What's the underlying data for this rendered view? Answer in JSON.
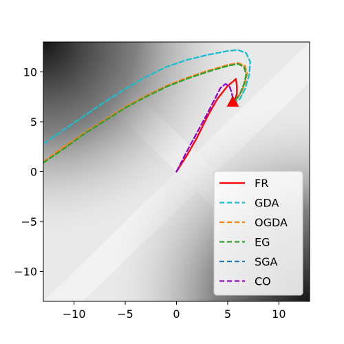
{
  "chart_data": {
    "type": "line",
    "title": "",
    "xlabel": "",
    "ylabel": "",
    "xlim": [
      -13,
      13
    ],
    "ylim": [
      -13,
      13
    ],
    "xticks": [
      -10,
      -5,
      0,
      5,
      10
    ],
    "yticks": [
      -10,
      -5,
      0,
      5,
      10
    ],
    "xtick_labels": [
      "−10",
      "−5",
      "0",
      "5",
      "10"
    ],
    "ytick_labels": [
      "−10",
      "−5",
      "0",
      "5",
      "10"
    ],
    "grid": false,
    "legend_position": "lower-right",
    "background": "grayscale contour field, light along diagonals, dark toward top-left and bottom-right corners",
    "series": [
      {
        "name": "FR",
        "color": "#ff0000",
        "style": "solid",
        "points": [
          [
            0,
            0
          ],
          [
            1,
            1.6
          ],
          [
            2,
            3.4
          ],
          [
            3,
            5.5
          ],
          [
            4,
            7.3
          ],
          [
            5,
            8.6
          ],
          [
            5.6,
            9.1
          ],
          [
            5.8,
            9.3
          ],
          [
            5.9,
            8.6
          ],
          [
            5.9,
            7.8
          ],
          [
            5.7,
            7.2
          ],
          [
            5.5,
            7.0
          ]
        ]
      },
      {
        "name": "GDA",
        "color": "#17becf",
        "style": "dashed",
        "points": [
          [
            -13,
            2.8
          ],
          [
            -11,
            4.2
          ],
          [
            -9,
            5.6
          ],
          [
            -7,
            7.0
          ],
          [
            -5,
            8.3
          ],
          [
            -3,
            9.5
          ],
          [
            -1,
            10.5
          ],
          [
            1,
            11.2
          ],
          [
            3,
            11.7
          ],
          [
            5,
            12.1
          ],
          [
            6,
            12.2
          ],
          [
            6.8,
            11.9
          ],
          [
            7.2,
            11.0
          ],
          [
            7.1,
            9.7
          ],
          [
            6.7,
            8.3
          ],
          [
            6.2,
            7.3
          ],
          [
            5.8,
            7.0
          ]
        ]
      },
      {
        "name": "OGDA",
        "color": "#ff7f0e",
        "style": "dashed",
        "points": [
          [
            -13,
            1.0
          ],
          [
            -11,
            2.5
          ],
          [
            -9,
            3.9
          ],
          [
            -7,
            5.2
          ],
          [
            -5,
            6.5
          ],
          [
            -3,
            7.6
          ],
          [
            -1,
            8.6
          ],
          [
            1,
            9.4
          ],
          [
            3,
            10.1
          ],
          [
            5,
            10.7
          ],
          [
            6,
            10.9
          ],
          [
            6.7,
            10.6
          ],
          [
            6.9,
            9.8
          ],
          [
            6.7,
            8.9
          ],
          [
            6.3,
            7.9
          ],
          [
            5.9,
            7.3
          ],
          [
            5.6,
            7.0
          ]
        ]
      },
      {
        "name": "EG",
        "color": "#2ca02c",
        "style": "dashed",
        "points": [
          [
            -13,
            0.9
          ],
          [
            -11,
            2.3
          ],
          [
            -9,
            3.8
          ],
          [
            -7,
            5.1
          ],
          [
            -5,
            6.4
          ],
          [
            -3,
            7.5
          ],
          [
            -1,
            8.5
          ],
          [
            1,
            9.3
          ],
          [
            3,
            10.0
          ],
          [
            5,
            10.6
          ],
          [
            6,
            10.8
          ],
          [
            6.6,
            10.5
          ],
          [
            6.8,
            9.7
          ],
          [
            6.6,
            8.8
          ],
          [
            6.2,
            7.8
          ],
          [
            5.8,
            7.2
          ],
          [
            5.5,
            7.0
          ]
        ]
      },
      {
        "name": "SGA",
        "color": "#1f77b4",
        "style": "dashed",
        "points": []
      },
      {
        "name": "CO",
        "color": "#9400d3",
        "style": "dashed",
        "points": [
          [
            0,
            0
          ],
          [
            1,
            2.0
          ],
          [
            2,
            3.9
          ],
          [
            3,
            5.8
          ],
          [
            3.8,
            7.4
          ],
          [
            4.3,
            8.4
          ],
          [
            4.8,
            8.8
          ],
          [
            5.2,
            8.5
          ],
          [
            5.4,
            7.9
          ],
          [
            5.5,
            7.3
          ],
          [
            5.5,
            7.0
          ]
        ]
      }
    ],
    "marker": {
      "shape": "triangle",
      "color": "#ff0000",
      "x": 5.5,
      "y": 7.0
    }
  }
}
